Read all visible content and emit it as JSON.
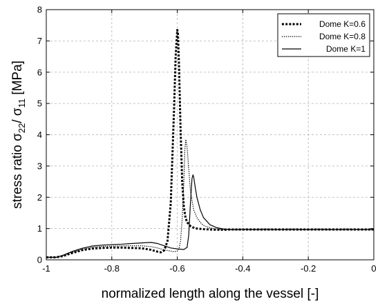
{
  "chart_data": {
    "type": "line",
    "title": "",
    "xlabel": "normalized length along the vessel [-]",
    "ylabel": {
      "prefix": "stress ratio σ",
      "sub1": "22",
      "mid": "/ σ",
      "sub2": "11",
      "suffix": " [MPa]"
    },
    "xlim": [
      -1,
      0
    ],
    "ylim": [
      0,
      8
    ],
    "xticks": [
      -1,
      -0.8,
      -0.6,
      -0.4,
      -0.2,
      0
    ],
    "xtick_labels": [
      "-1",
      "-0.8",
      "-0.6",
      "-0.4",
      "-0.2",
      "0"
    ],
    "yticks": [
      0,
      1,
      2,
      3,
      4,
      5,
      6,
      7,
      8
    ],
    "ytick_labels": [
      "0",
      "1",
      "2",
      "3",
      "4",
      "5",
      "6",
      "7",
      "8"
    ],
    "grid": true,
    "legend_position": "top-right",
    "series": [
      {
        "name": "Dome K=0.6",
        "style": "dotted-thick",
        "x": [
          -1,
          -0.97,
          -0.95,
          -0.92,
          -0.89,
          -0.86,
          -0.83,
          -0.8,
          -0.77,
          -0.74,
          -0.71,
          -0.68,
          -0.66,
          -0.65,
          -0.64,
          -0.63,
          -0.62,
          -0.61,
          -0.605,
          -0.6,
          -0.598,
          -0.595,
          -0.59,
          -0.585,
          -0.58,
          -0.575,
          -0.57,
          -0.56,
          -0.55,
          -0.54,
          -0.52,
          -0.5,
          -0.48,
          -0.46,
          -0.44,
          -0.4,
          -0.3,
          -0.2,
          -0.1,
          0
        ],
        "y": [
          0.08,
          0.08,
          0.12,
          0.22,
          0.31,
          0.36,
          0.38,
          0.39,
          0.39,
          0.38,
          0.37,
          0.32,
          0.26,
          0.24,
          0.3,
          0.6,
          1.8,
          4.8,
          6.5,
          7.35,
          7.25,
          6.3,
          4.2,
          2.5,
          1.7,
          1.35,
          1.2,
          1.08,
          1.03,
          1.0,
          0.98,
          0.97,
          0.96,
          0.96,
          0.97,
          0.97,
          0.97,
          0.97,
          0.97,
          0.97
        ]
      },
      {
        "name": "Dome K=0.8",
        "style": "dotted-thin",
        "x": [
          -1,
          -0.97,
          -0.95,
          -0.92,
          -0.89,
          -0.86,
          -0.83,
          -0.8,
          -0.77,
          -0.74,
          -0.71,
          -0.68,
          -0.66,
          -0.64,
          -0.62,
          -0.61,
          -0.6,
          -0.595,
          -0.59,
          -0.585,
          -0.58,
          -0.577,
          -0.574,
          -0.57,
          -0.565,
          -0.56,
          -0.55,
          -0.54,
          -0.53,
          -0.52,
          -0.5,
          -0.48,
          -0.46,
          -0.44,
          -0.4,
          -0.3,
          -0.2,
          -0.1,
          0
        ],
        "y": [
          0.08,
          0.08,
          0.13,
          0.24,
          0.34,
          0.4,
          0.43,
          0.44,
          0.45,
          0.45,
          0.45,
          0.42,
          0.38,
          0.32,
          0.28,
          0.26,
          0.28,
          0.35,
          0.6,
          1.3,
          2.5,
          3.5,
          3.85,
          3.6,
          2.9,
          2.2,
          1.6,
          1.35,
          1.2,
          1.1,
          1.02,
          0.99,
          0.97,
          0.96,
          0.97,
          0.97,
          0.97,
          0.97,
          0.97
        ]
      },
      {
        "name": "Dome K=1",
        "style": "solid",
        "x": [
          -1,
          -0.97,
          -0.95,
          -0.92,
          -0.89,
          -0.86,
          -0.83,
          -0.8,
          -0.77,
          -0.74,
          -0.71,
          -0.68,
          -0.66,
          -0.64,
          -0.62,
          -0.6,
          -0.58,
          -0.57,
          -0.565,
          -0.56,
          -0.555,
          -0.552,
          -0.55,
          -0.545,
          -0.54,
          -0.53,
          -0.52,
          -0.5,
          -0.48,
          -0.46,
          -0.44,
          -0.42,
          -0.4,
          -0.3,
          -0.2,
          -0.1,
          0
        ],
        "y": [
          0.08,
          0.08,
          0.14,
          0.27,
          0.37,
          0.44,
          0.47,
          0.49,
          0.5,
          0.52,
          0.54,
          0.56,
          0.52,
          0.45,
          0.38,
          0.35,
          0.33,
          0.4,
          0.8,
          1.8,
          2.6,
          2.72,
          2.65,
          2.3,
          2.0,
          1.6,
          1.35,
          1.12,
          1.03,
          0.99,
          0.97,
          0.96,
          0.97,
          0.97,
          0.97,
          0.97,
          0.97
        ]
      }
    ]
  }
}
